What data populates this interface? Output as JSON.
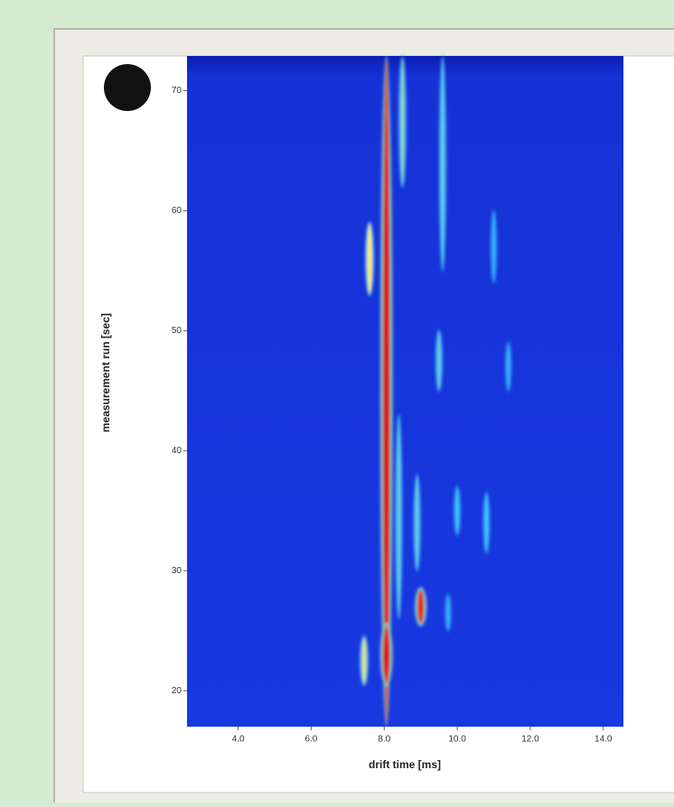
{
  "chart_data": {
    "type": "heatmap",
    "xlabel": "drift time [ms]",
    "ylabel": "measurement run [sec]",
    "xlim": [
      2.6,
      14.55
    ],
    "ylim": [
      17.0,
      72.9
    ],
    "xticks": [
      {
        "value": 4,
        "label": "4.0"
      },
      {
        "value": 6,
        "label": "6.0"
      },
      {
        "value": 8,
        "label": "8.0"
      },
      {
        "value": 10,
        "label": "10.0"
      },
      {
        "value": 12,
        "label": "12.0"
      },
      {
        "value": 14,
        "label": "14.0"
      }
    ],
    "yticks": [
      20,
      30,
      40,
      50,
      60,
      70
    ],
    "peaks": {
      "drift": [
        8.06,
        7.6,
        7.45,
        8.06,
        9.0,
        8.5,
        9.6,
        9.5,
        8.9,
        10.0,
        10.8,
        11.0,
        11.4,
        9.75,
        8.4
      ],
      "run_from": [
        17.2,
        53,
        20.5,
        20.5,
        25.5,
        62,
        55,
        45,
        30,
        33,
        31.5,
        54,
        45,
        25,
        26
      ],
      "run_to": [
        72.8,
        59,
        24.5,
        25.5,
        28.5,
        72.8,
        72.8,
        50,
        38,
        37,
        36.5,
        60,
        49,
        28,
        43
      ],
      "intensity": [
        1.0,
        0.6,
        0.55,
        1.0,
        0.95,
        0.45,
        0.4,
        0.4,
        0.4,
        0.35,
        0.35,
        0.3,
        0.3,
        0.3,
        0.4
      ]
    }
  }
}
